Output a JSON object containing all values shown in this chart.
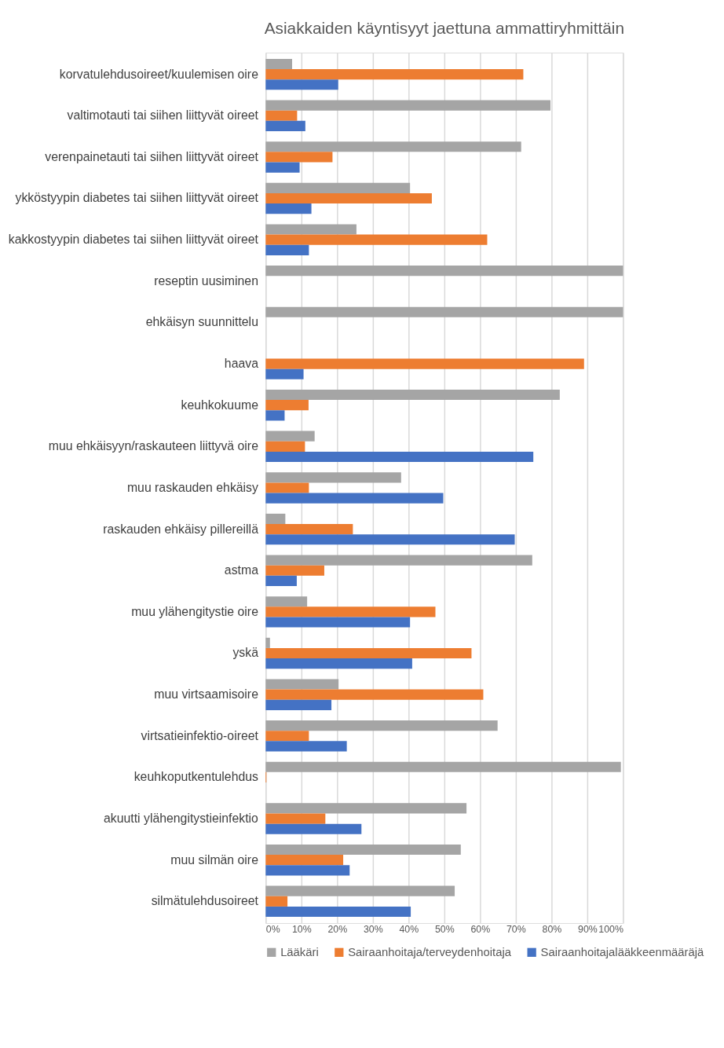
{
  "chart_data": {
    "type": "bar",
    "orientation": "horizontal",
    "title": "Asiakkaiden käyntisyyt jaettuna ammattiryhmittäin",
    "categories": [
      "korvatulehdusoireet/kuulemisen oire",
      "valtimotauti tai siihen liittyvät oireet",
      "verenpainetauti tai siihen liittyvät oireet",
      "ykköstyypin diabetes tai siihen liittyvät oireet",
      "kakkostyypin diabetes tai siihen liittyvät oireet",
      "reseptin uusiminen",
      "ehkäisyn suunnittelu",
      "haava",
      "keuhkokuume",
      "muu ehkäisyyn/raskauteen liittyvä oire",
      "muu raskauden ehkäisy",
      "raskauden ehkäisy pillereillä",
      "astma",
      "muu ylähengitystie oire",
      "yskä",
      "muu virtsaamisoire",
      "virtsatieinfektio-oireet",
      "keuhkoputkentulehdus",
      "akuutti ylähengitystieinfektio",
      "muu silmän oire",
      "silmätulehdusoireet"
    ],
    "series": [
      {
        "name": "Lääkäri",
        "color": "#a5a5a5",
        "values": [
          7.4,
          79.7,
          71.5,
          40.4,
          25.4,
          100,
          100,
          null,
          82.3,
          13.7,
          37.9,
          5.5,
          74.6,
          11.6,
          1.2,
          20.4,
          64.9,
          99.4,
          56.2,
          54.6,
          52.9
        ]
      },
      {
        "name": "Sairaanhoitaja/terveydenhoitaja",
        "color": "#ed7d31",
        "values": [
          72.1,
          8.8,
          18.7,
          46.5,
          62.0,
          null,
          null,
          89.1,
          12.0,
          11.0,
          12.1,
          24.4,
          16.4,
          47.5,
          57.6,
          60.9,
          12.1,
          0.2,
          16.7,
          21.7,
          6.1
        ]
      },
      {
        "name": "Sairaanhoitajalääkkeenmääräjä",
        "color": "#4472c4",
        "values": [
          20.3,
          11.1,
          9.5,
          12.8,
          12.1,
          null,
          null,
          10.6,
          5.3,
          74.9,
          49.7,
          69.7,
          8.7,
          40.4,
          41.0,
          18.4,
          22.7,
          0,
          26.8,
          23.5,
          40.6
        ]
      }
    ],
    "xlim": [
      0,
      100
    ],
    "xticks": [
      {
        "value": 0,
        "label": "0%"
      },
      {
        "value": 10,
        "label": "10%"
      },
      {
        "value": 20,
        "label": "20%"
      },
      {
        "value": 30,
        "label": "30%"
      },
      {
        "value": 40,
        "label": "40%"
      },
      {
        "value": 50,
        "label": "50%"
      },
      {
        "value": 60,
        "label": "60%"
      },
      {
        "value": 70,
        "label": "70%"
      },
      {
        "value": 80,
        "label": "80%"
      },
      {
        "value": 90,
        "label": "90%"
      },
      {
        "value": 100,
        "label": "100%"
      }
    ],
    "grid": "x",
    "legend": "bottom"
  }
}
